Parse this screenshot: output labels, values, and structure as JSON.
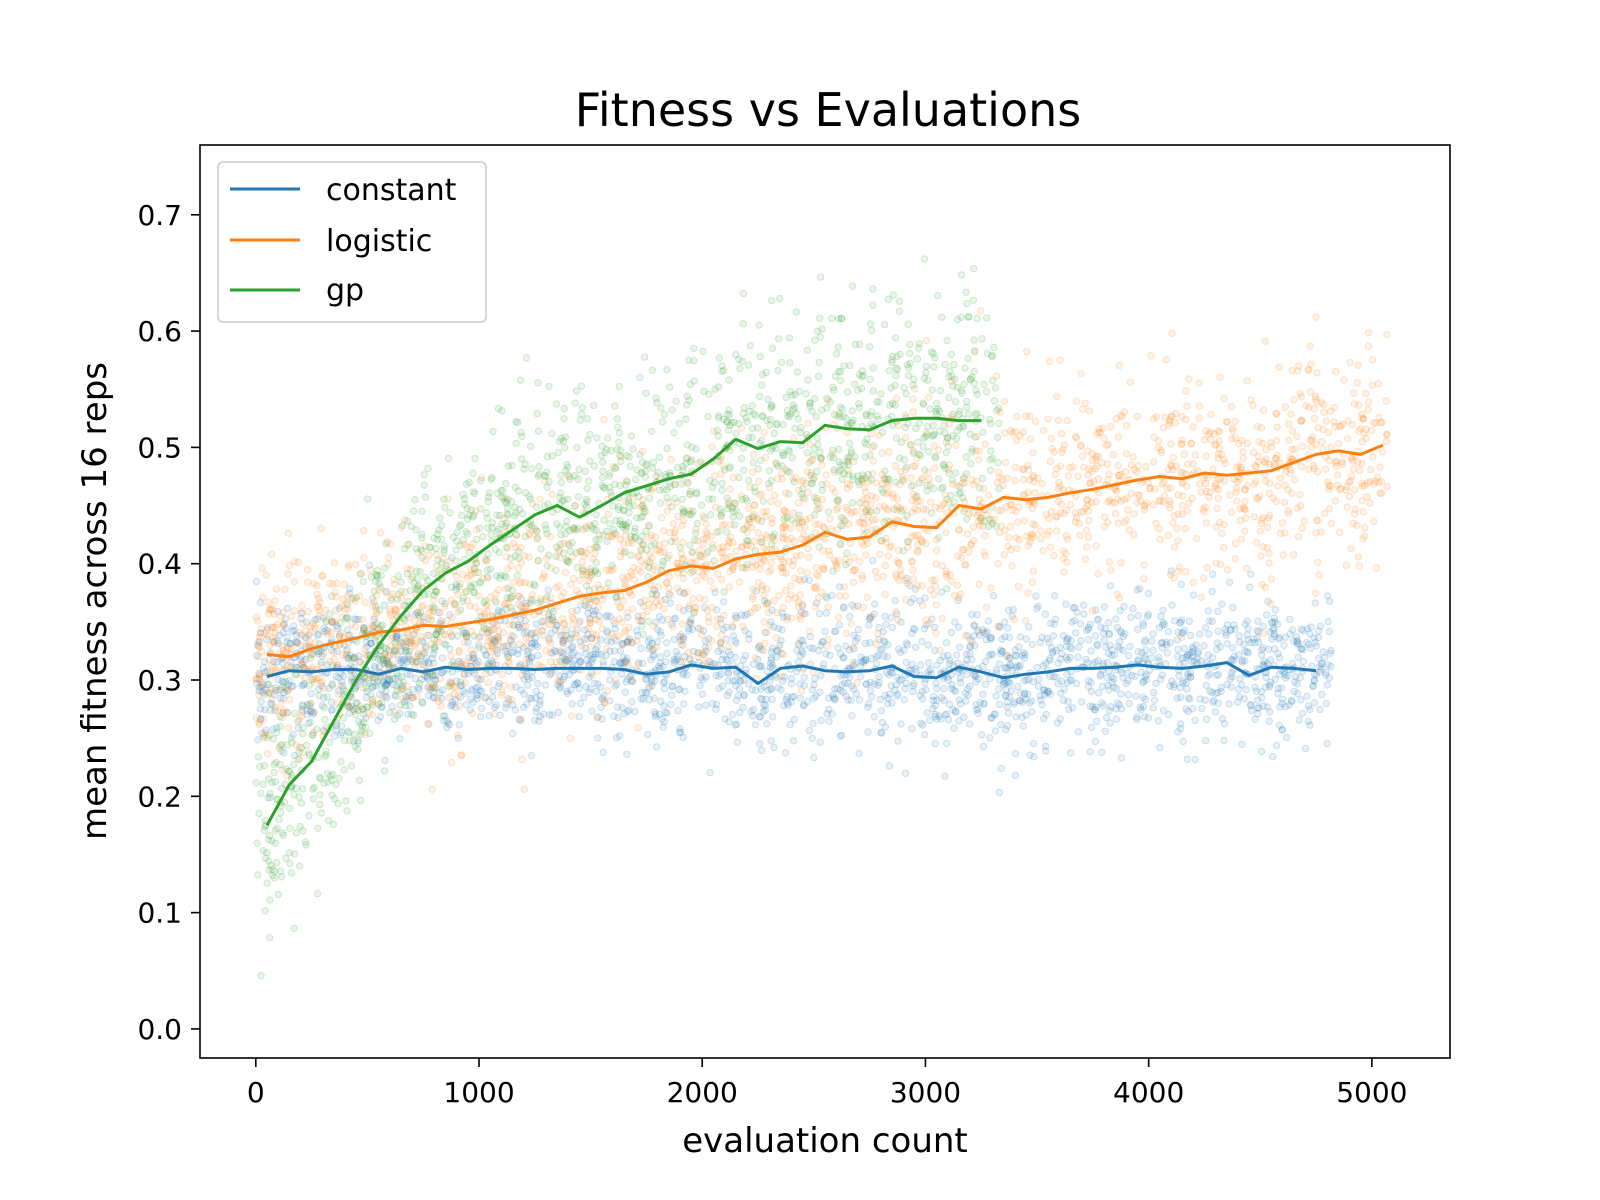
{
  "chart_data": {
    "type": "scatter",
    "title": "Fitness vs Evaluations",
    "xlabel": "evaluation count",
    "ylabel": "mean fitness across 16 reps",
    "xlim": [
      -250,
      5350
    ],
    "ylim": [
      -0.025,
      0.76
    ],
    "xticks": [
      0,
      1000,
      2000,
      3000,
      4000,
      5000
    ],
    "yticks": [
      0.0,
      0.1,
      0.2,
      0.3,
      0.4,
      0.5,
      0.6,
      0.7
    ],
    "xtick_labels": [
      "0",
      "1000",
      "2000",
      "3000",
      "4000",
      "5000"
    ],
    "ytick_labels": [
      "0.0",
      "0.1",
      "0.2",
      "0.3",
      "0.4",
      "0.5",
      "0.6",
      "0.7"
    ],
    "grid": false,
    "legend_position": "top-left",
    "series": [
      {
        "name": "constant",
        "color": "#1f77b4",
        "scatter_x_range": [
          0,
          4820
        ],
        "scatter_spread": 0.03,
        "line_x": [
          50,
          150,
          250,
          350,
          450,
          550,
          650,
          750,
          850,
          950,
          1050,
          1150,
          1250,
          1350,
          1450,
          1550,
          1650,
          1750,
          1850,
          1950,
          2050,
          2150,
          2250,
          2350,
          2450,
          2550,
          2650,
          2750,
          2850,
          2950,
          3050,
          3150,
          3250,
          3350,
          3450,
          3550,
          3650,
          3750,
          3850,
          3950,
          4050,
          4150,
          4250,
          4350,
          4450,
          4550,
          4650,
          4750
        ],
        "line_y": [
          0.303,
          0.308,
          0.307,
          0.309,
          0.309,
          0.305,
          0.31,
          0.307,
          0.311,
          0.309,
          0.31,
          0.31,
          0.309,
          0.31,
          0.31,
          0.31,
          0.309,
          0.305,
          0.307,
          0.313,
          0.31,
          0.311,
          0.297,
          0.31,
          0.312,
          0.308,
          0.307,
          0.308,
          0.312,
          0.303,
          0.302,
          0.311,
          0.307,
          0.302,
          0.305,
          0.307,
          0.31,
          0.31,
          0.311,
          0.313,
          0.311,
          0.31,
          0.312,
          0.315,
          0.304,
          0.311,
          0.31,
          0.308
        ]
      },
      {
        "name": "logistic",
        "color": "#ff7f0e",
        "scatter_x_range": [
          0,
          5070
        ],
        "scatter_spread": 0.045,
        "line_x": [
          50,
          150,
          250,
          350,
          450,
          550,
          650,
          750,
          850,
          950,
          1050,
          1150,
          1250,
          1350,
          1450,
          1550,
          1650,
          1750,
          1850,
          1950,
          2050,
          2150,
          2250,
          2350,
          2450,
          2550,
          2650,
          2750,
          2850,
          2950,
          3050,
          3150,
          3250,
          3350,
          3450,
          3550,
          3650,
          3750,
          3850,
          3950,
          4050,
          4150,
          4250,
          4350,
          4450,
          4550,
          4650,
          4750,
          4850,
          4950,
          5050
        ],
        "line_y": [
          0.322,
          0.32,
          0.327,
          0.332,
          0.336,
          0.341,
          0.343,
          0.347,
          0.346,
          0.349,
          0.352,
          0.356,
          0.36,
          0.366,
          0.372,
          0.375,
          0.377,
          0.384,
          0.394,
          0.398,
          0.396,
          0.404,
          0.408,
          0.41,
          0.416,
          0.427,
          0.421,
          0.423,
          0.436,
          0.432,
          0.431,
          0.45,
          0.447,
          0.457,
          0.455,
          0.457,
          0.461,
          0.464,
          0.468,
          0.472,
          0.475,
          0.473,
          0.478,
          0.476,
          0.478,
          0.48,
          0.487,
          0.494,
          0.497,
          0.494,
          0.502
        ]
      },
      {
        "name": "gp",
        "color": "#2ca02c",
        "scatter_x_range": [
          0,
          3330
        ],
        "scatter_spread": 0.05,
        "line_x": [
          50,
          150,
          250,
          350,
          450,
          550,
          650,
          750,
          850,
          950,
          1050,
          1150,
          1250,
          1350,
          1450,
          1550,
          1650,
          1750,
          1850,
          1950,
          2050,
          2150,
          2250,
          2350,
          2450,
          2550,
          2650,
          2750,
          2850,
          2950,
          3050,
          3150,
          3250
        ],
        "line_y": [
          0.175,
          0.21,
          0.23,
          0.265,
          0.3,
          0.33,
          0.355,
          0.377,
          0.392,
          0.402,
          0.416,
          0.429,
          0.442,
          0.45,
          0.44,
          0.45,
          0.461,
          0.467,
          0.473,
          0.477,
          0.49,
          0.507,
          0.499,
          0.505,
          0.504,
          0.519,
          0.516,
          0.515,
          0.523,
          0.525,
          0.525,
          0.523,
          0.523
        ]
      }
    ]
  }
}
